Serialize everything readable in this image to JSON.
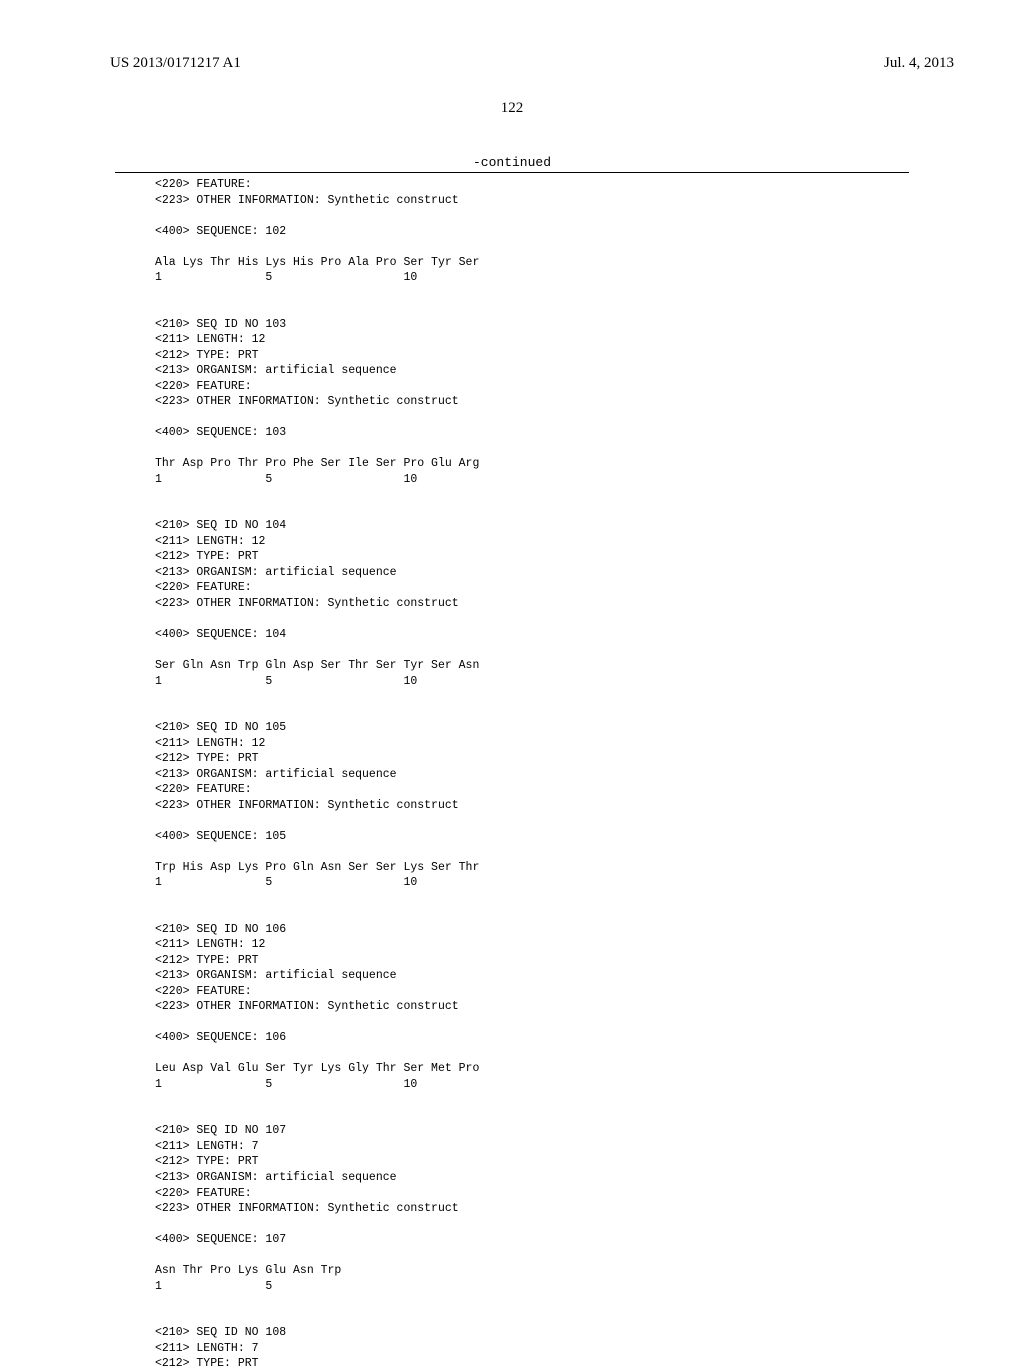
{
  "header": {
    "pub_number": "US 2013/0171217 A1",
    "pub_date": "Jul. 4, 2013"
  },
  "page_number": "122",
  "continued_label": "-continued",
  "entries": [
    {
      "pre_lines": [
        "<220> FEATURE:",
        "<223> OTHER INFORMATION: Synthetic construct"
      ],
      "seq_label": "<400> SEQUENCE: 102",
      "residues": "Ala Lys Thr His Lys His Pro Ala Pro Ser Tyr Ser",
      "numbers": "1               5                   10"
    },
    {
      "pre_lines": [
        "<210> SEQ ID NO 103",
        "<211> LENGTH: 12",
        "<212> TYPE: PRT",
        "<213> ORGANISM: artificial sequence",
        "<220> FEATURE:",
        "<223> OTHER INFORMATION: Synthetic construct"
      ],
      "seq_label": "<400> SEQUENCE: 103",
      "residues": "Thr Asp Pro Thr Pro Phe Ser Ile Ser Pro Glu Arg",
      "numbers": "1               5                   10"
    },
    {
      "pre_lines": [
        "<210> SEQ ID NO 104",
        "<211> LENGTH: 12",
        "<212> TYPE: PRT",
        "<213> ORGANISM: artificial sequence",
        "<220> FEATURE:",
        "<223> OTHER INFORMATION: Synthetic construct"
      ],
      "seq_label": "<400> SEQUENCE: 104",
      "residues": "Ser Gln Asn Trp Gln Asp Ser Thr Ser Tyr Ser Asn",
      "numbers": "1               5                   10"
    },
    {
      "pre_lines": [
        "<210> SEQ ID NO 105",
        "<211> LENGTH: 12",
        "<212> TYPE: PRT",
        "<213> ORGANISM: artificial sequence",
        "<220> FEATURE:",
        "<223> OTHER INFORMATION: Synthetic construct"
      ],
      "seq_label": "<400> SEQUENCE: 105",
      "residues": "Trp His Asp Lys Pro Gln Asn Ser Ser Lys Ser Thr",
      "numbers": "1               5                   10"
    },
    {
      "pre_lines": [
        "<210> SEQ ID NO 106",
        "<211> LENGTH: 12",
        "<212> TYPE: PRT",
        "<213> ORGANISM: artificial sequence",
        "<220> FEATURE:",
        "<223> OTHER INFORMATION: Synthetic construct"
      ],
      "seq_label": "<400> SEQUENCE: 106",
      "residues": "Leu Asp Val Glu Ser Tyr Lys Gly Thr Ser Met Pro",
      "numbers": "1               5                   10"
    },
    {
      "pre_lines": [
        "<210> SEQ ID NO 107",
        "<211> LENGTH: 7",
        "<212> TYPE: PRT",
        "<213> ORGANISM: artificial sequence",
        "<220> FEATURE:",
        "<223> OTHER INFORMATION: Synthetic construct"
      ],
      "seq_label": "<400> SEQUENCE: 107",
      "residues": "Asn Thr Pro Lys Glu Asn Trp",
      "numbers": "1               5"
    },
    {
      "pre_lines": [
        "<210> SEQ ID NO 108",
        "<211> LENGTH: 7",
        "<212> TYPE: PRT"
      ],
      "seq_label": null,
      "residues": null,
      "numbers": null
    }
  ]
}
